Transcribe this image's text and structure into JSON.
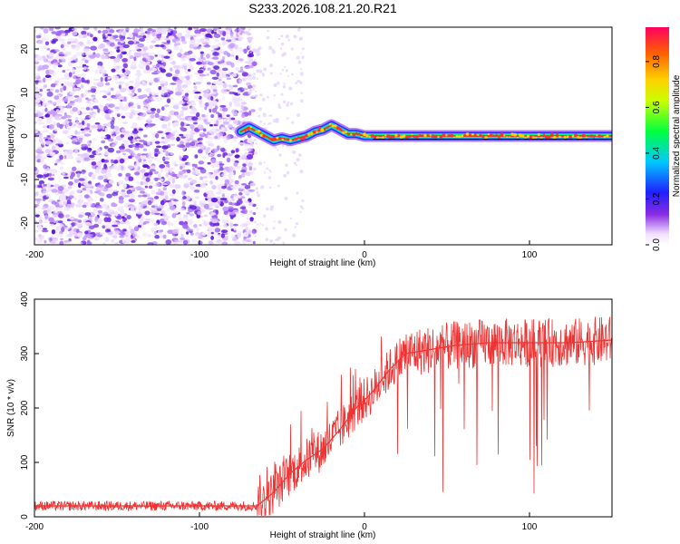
{
  "title": "S233.2026.108.21.20.R21",
  "chart_data": [
    {
      "type": "heatmap",
      "name": "spectrogram",
      "xlabel": "Height of straight line (km)",
      "ylabel": "Frequency (Hz)",
      "xlim": [
        -200,
        150
      ],
      "ylim": [
        -25,
        25
      ],
      "xticks": [
        -200,
        -100,
        0,
        100
      ],
      "yticks": [
        -20,
        -10,
        0,
        10,
        20
      ],
      "noise_region": [
        -200,
        -70
      ],
      "carrier_line": {
        "x": [
          -75,
          -70,
          -65,
          -60,
          -55,
          -50,
          -45,
          -40,
          -35,
          -30,
          -25,
          -20,
          -15,
          -10,
          -5,
          0,
          5,
          150
        ],
        "y": [
          1,
          2,
          1,
          0,
          -1,
          -0.5,
          -1,
          -0.5,
          0,
          1,
          1.5,
          2.5,
          1.5,
          0.5,
          0.5,
          0,
          0,
          0
        ]
      },
      "colorbar": {
        "label": "Normalized spectral amplitude",
        "range": [
          0,
          0.95
        ],
        "ticks": [
          "0.0",
          "0.2",
          "0.4",
          "0.6",
          "0.8"
        ]
      }
    },
    {
      "type": "line",
      "name": "snr",
      "xlabel": "Height of straight line (km)",
      "ylabel": "SNR (10 * v/v)",
      "xlim": [
        -200,
        150
      ],
      "ylim": [
        0,
        400
      ],
      "xticks": [
        -200,
        -100,
        0,
        100
      ],
      "yticks": [
        0,
        100,
        200,
        300,
        400
      ],
      "color": "#ee3333",
      "series": [
        {
          "name": "SNR",
          "x": [
            -200,
            -150,
            -100,
            -65,
            -55,
            -45,
            -35,
            -25,
            -15,
            -5,
            5,
            15,
            25,
            35,
            45,
            55,
            75,
            100,
            125,
            150
          ],
          "values": [
            20,
            20,
            20,
            20,
            45,
            80,
            105,
            125,
            160,
            200,
            230,
            270,
            300,
            305,
            310,
            315,
            320,
            320,
            320,
            325
          ]
        }
      ]
    }
  ]
}
